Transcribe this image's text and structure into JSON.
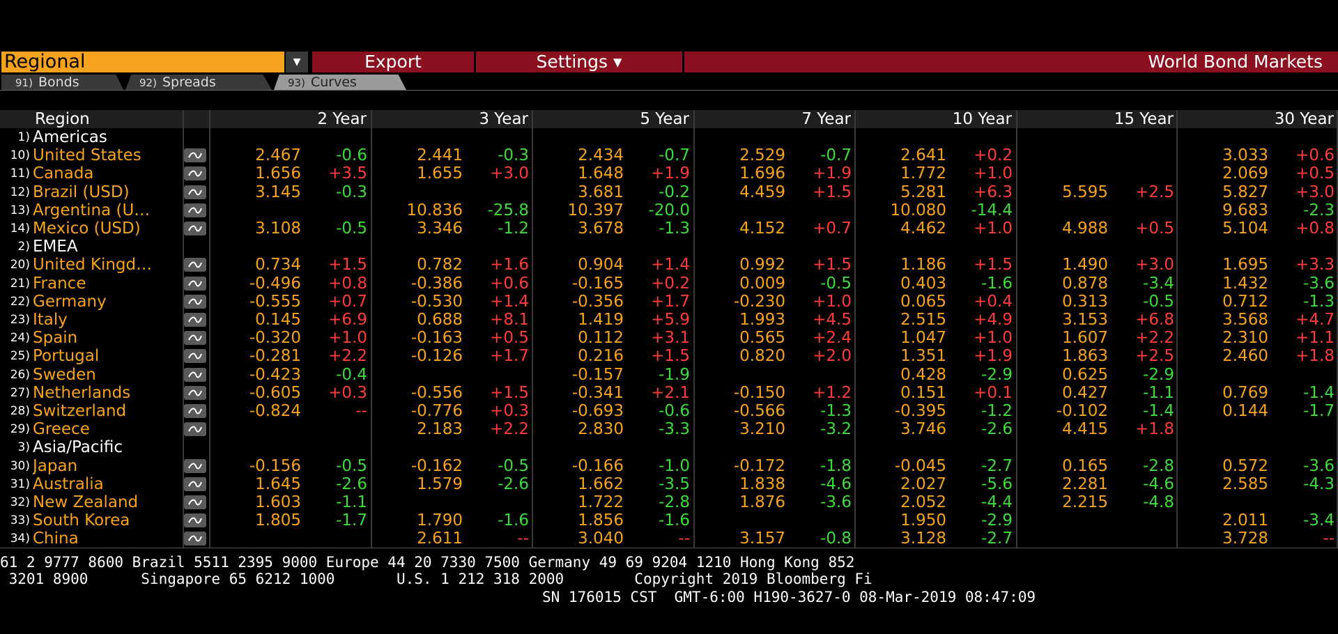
{
  "toolbar": {
    "regional_label": "Regional",
    "export_label": "Export",
    "settings_label": "Settings ▾",
    "title": "World Bond Markets"
  },
  "tabs": [
    {
      "num": "91)",
      "label": "Bonds"
    },
    {
      "num": "92)",
      "label": "Spreads"
    },
    {
      "num": "93)",
      "label": "Curves"
    }
  ],
  "columns": [
    "Region",
    "2 Year",
    "3 Year",
    "5 Year",
    "7 Year",
    "10 Year",
    "15 Year",
    "30 Year"
  ],
  "rows": [
    {
      "type": "group",
      "num": "1)",
      "name": "Americas"
    },
    {
      "type": "data",
      "num": "10)",
      "name": "United States",
      "cells": [
        [
          "2.467",
          "-0.6"
        ],
        [
          "2.441",
          "-0.3"
        ],
        [
          "2.434",
          "-0.7"
        ],
        [
          "2.529",
          "-0.7"
        ],
        [
          "2.641",
          "+0.2"
        ],
        [
          "",
          ""
        ],
        [
          "3.033",
          "+0.6"
        ]
      ]
    },
    {
      "type": "data",
      "num": "11)",
      "name": "Canada",
      "cells": [
        [
          "1.656",
          "+3.5"
        ],
        [
          "1.655",
          "+3.0"
        ],
        [
          "1.648",
          "+1.9"
        ],
        [
          "1.696",
          "+1.9"
        ],
        [
          "1.772",
          "+1.0"
        ],
        [
          "",
          ""
        ],
        [
          "2.069",
          "+0.5"
        ]
      ]
    },
    {
      "type": "data",
      "num": "12)",
      "name": "Brazil (USD)",
      "cells": [
        [
          "3.145",
          "-0.3"
        ],
        [
          "",
          ""
        ],
        [
          "3.681",
          "-0.2"
        ],
        [
          "4.459",
          "+1.5"
        ],
        [
          "5.281",
          "+6.3"
        ],
        [
          "5.595",
          "+2.5"
        ],
        [
          "5.827",
          "+3.0"
        ]
      ]
    },
    {
      "type": "data",
      "num": "13)",
      "name": "Argentina (U…",
      "cells": [
        [
          "",
          ""
        ],
        [
          "10.836",
          "-25.8"
        ],
        [
          "10.397",
          "-20.0"
        ],
        [
          "",
          ""
        ],
        [
          "10.080",
          "-14.4"
        ],
        [
          "",
          ""
        ],
        [
          "9.683",
          "-2.3"
        ]
      ]
    },
    {
      "type": "data",
      "num": "14)",
      "name": "Mexico (USD)",
      "cells": [
        [
          "3.108",
          "-0.5"
        ],
        [
          "3.346",
          "-1.2"
        ],
        [
          "3.678",
          "-1.3"
        ],
        [
          "4.152",
          "+0.7"
        ],
        [
          "4.462",
          "+1.0"
        ],
        [
          "4.988",
          "+0.5"
        ],
        [
          "5.104",
          "+0.8"
        ]
      ]
    },
    {
      "type": "group",
      "num": "2)",
      "name": "EMEA"
    },
    {
      "type": "data",
      "num": "20)",
      "name": "United Kingd…",
      "cells": [
        [
          "0.734",
          "+1.5"
        ],
        [
          "0.782",
          "+1.6"
        ],
        [
          "0.904",
          "+1.4"
        ],
        [
          "0.992",
          "+1.5"
        ],
        [
          "1.186",
          "+1.5"
        ],
        [
          "1.490",
          "+3.0"
        ],
        [
          "1.695",
          "+3.3"
        ]
      ]
    },
    {
      "type": "data",
      "num": "21)",
      "name": "France",
      "cells": [
        [
          "-0.496",
          "+0.8"
        ],
        [
          "-0.386",
          "+0.6"
        ],
        [
          "-0.165",
          "+0.2"
        ],
        [
          "0.009",
          "-0.5"
        ],
        [
          "0.403",
          "-1.6"
        ],
        [
          "0.878",
          "-3.4"
        ],
        [
          "1.432",
          "-3.6"
        ]
      ]
    },
    {
      "type": "data",
      "num": "22)",
      "name": "Germany",
      "cells": [
        [
          "-0.555",
          "+0.7"
        ],
        [
          "-0.530",
          "+1.4"
        ],
        [
          "-0.356",
          "+1.7"
        ],
        [
          "-0.230",
          "+1.0"
        ],
        [
          "0.065",
          "+0.4"
        ],
        [
          "0.313",
          "-0.5"
        ],
        [
          "0.712",
          "-1.3"
        ]
      ]
    },
    {
      "type": "data",
      "num": "23)",
      "name": "Italy",
      "cells": [
        [
          "0.145",
          "+6.9"
        ],
        [
          "0.688",
          "+8.1"
        ],
        [
          "1.419",
          "+5.9"
        ],
        [
          "1.993",
          "+4.5"
        ],
        [
          "2.515",
          "+4.9"
        ],
        [
          "3.153",
          "+6.8"
        ],
        [
          "3.568",
          "+4.7"
        ]
      ]
    },
    {
      "type": "data",
      "num": "24)",
      "name": "Spain",
      "cells": [
        [
          "-0.320",
          "+1.0"
        ],
        [
          "-0.163",
          "+0.5"
        ],
        [
          "0.112",
          "+3.1"
        ],
        [
          "0.565",
          "+2.4"
        ],
        [
          "1.047",
          "+1.0"
        ],
        [
          "1.607",
          "+2.2"
        ],
        [
          "2.310",
          "+1.1"
        ]
      ]
    },
    {
      "type": "data",
      "num": "25)",
      "name": "Portugal",
      "cells": [
        [
          "-0.281",
          "+2.2"
        ],
        [
          "-0.126",
          "+1.7"
        ],
        [
          "0.216",
          "+1.5"
        ],
        [
          "0.820",
          "+2.0"
        ],
        [
          "1.351",
          "+1.9"
        ],
        [
          "1.863",
          "+2.5"
        ],
        [
          "2.460",
          "+1.8"
        ]
      ]
    },
    {
      "type": "data",
      "num": "26)",
      "name": "Sweden",
      "cells": [
        [
          "-0.423",
          "-0.4"
        ],
        [
          "",
          ""
        ],
        [
          "-0.157",
          "-1.9"
        ],
        [
          "",
          ""
        ],
        [
          "0.428",
          "-2.9"
        ],
        [
          "0.625",
          "-2.9"
        ],
        [
          "",
          ""
        ]
      ]
    },
    {
      "type": "data",
      "num": "27)",
      "name": "Netherlands",
      "cells": [
        [
          "-0.605",
          "+0.3"
        ],
        [
          "-0.556",
          "+1.5"
        ],
        [
          "-0.341",
          "+2.1"
        ],
        [
          "-0.150",
          "+1.2"
        ],
        [
          "0.151",
          "+0.1"
        ],
        [
          "0.427",
          "-1.1"
        ],
        [
          "0.769",
          "-1.4"
        ]
      ]
    },
    {
      "type": "data",
      "num": "28)",
      "name": "Switzerland",
      "cells": [
        [
          "-0.824",
          "--"
        ],
        [
          "-0.776",
          "+0.3"
        ],
        [
          "-0.693",
          "-0.6"
        ],
        [
          "-0.566",
          "-1.3"
        ],
        [
          "-0.395",
          "-1.2"
        ],
        [
          "-0.102",
          "-1.4"
        ],
        [
          "0.144",
          "-1.7"
        ]
      ]
    },
    {
      "type": "data",
      "num": "29)",
      "name": "Greece",
      "cells": [
        [
          "",
          ""
        ],
        [
          "2.183",
          "+2.2"
        ],
        [
          "2.830",
          "-3.3"
        ],
        [
          "3.210",
          "-3.2"
        ],
        [
          "3.746",
          "-2.6"
        ],
        [
          "4.415",
          "+1.8"
        ],
        [
          "",
          ""
        ]
      ]
    },
    {
      "type": "group",
      "num": "3)",
      "name": "Asia/Pacific"
    },
    {
      "type": "data",
      "num": "30)",
      "name": "Japan",
      "cells": [
        [
          "-0.156",
          "-0.5"
        ],
        [
          "-0.162",
          "-0.5"
        ],
        [
          "-0.166",
          "-1.0"
        ],
        [
          "-0.172",
          "-1.8"
        ],
        [
          "-0.045",
          "-2.7"
        ],
        [
          "0.165",
          "-2.8"
        ],
        [
          "0.572",
          "-3.6"
        ]
      ]
    },
    {
      "type": "data",
      "num": "31)",
      "name": "Australia",
      "cells": [
        [
          "1.645",
          "-2.6"
        ],
        [
          "1.579",
          "-2.6"
        ],
        [
          "1.662",
          "-3.5"
        ],
        [
          "1.838",
          "-4.6"
        ],
        [
          "2.027",
          "-5.6"
        ],
        [
          "2.281",
          "-4.6"
        ],
        [
          "2.585",
          "-4.3"
        ]
      ]
    },
    {
      "type": "data",
      "num": "32)",
      "name": "New Zealand",
      "cells": [
        [
          "1.603",
          "-1.1"
        ],
        [
          "",
          ""
        ],
        [
          "1.722",
          "-2.8"
        ],
        [
          "1.876",
          "-3.6"
        ],
        [
          "2.052",
          "-4.4"
        ],
        [
          "2.215",
          "-4.8"
        ],
        [
          "",
          ""
        ]
      ]
    },
    {
      "type": "data",
      "num": "33)",
      "name": "South Korea",
      "cells": [
        [
          "1.805",
          "-1.7"
        ],
        [
          "1.790",
          "-1.6"
        ],
        [
          "1.856",
          "-1.6"
        ],
        [
          "",
          ""
        ],
        [
          "1.950",
          "-2.9"
        ],
        [
          "",
          ""
        ],
        [
          "2.011",
          "-3.4"
        ]
      ]
    },
    {
      "type": "data",
      "num": "34)",
      "name": "China",
      "cells": [
        [
          "",
          ""
        ],
        [
          "2.611",
          "--"
        ],
        [
          "3.040",
          "--"
        ],
        [
          "3.157",
          "-0.8"
        ],
        [
          "3.128",
          "-2.7"
        ],
        [
          "",
          ""
        ],
        [
          "3.728",
          "--"
        ]
      ]
    }
  ],
  "footer": {
    "line1": "61 2 9777 8600 Brazil 5511 2395 9000 Europe 44 20 7330 7500 Germany 49 69 9204 1210 Hong Kong 852",
    "line2": " 3201 8900      Singapore 65 6212 1000       U.S. 1 212 318 2000        Copyright 2019 Bloomberg Fi",
    "line3": "SN 176015 CST  GMT-6:00 H190-3627-0 08-Mar-2019 08:47:09"
  },
  "colors": {
    "accent": "#f5a31e",
    "bar": "#8b1020",
    "up": "#ff3b3b",
    "down": "#3bdc3b"
  }
}
